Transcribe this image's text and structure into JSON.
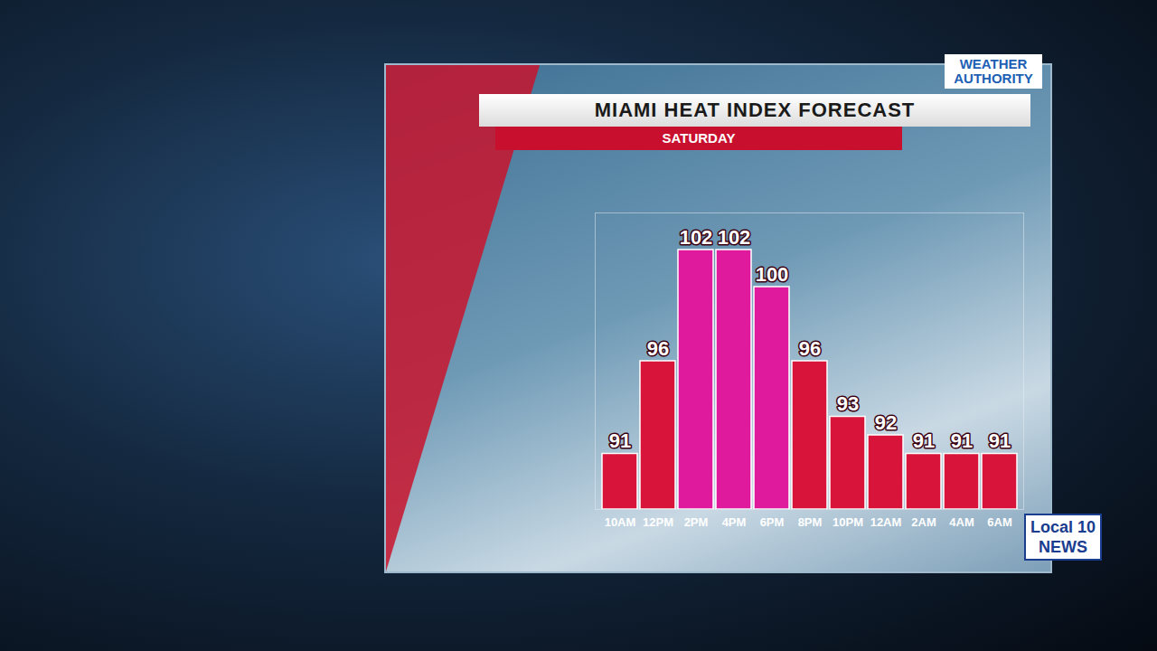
{
  "chart_data": {
    "type": "bar",
    "title": "MIAMI HEAT INDEX FORECAST",
    "subtitle": "SATURDAY",
    "categories": [
      "10AM",
      "12PM",
      "2PM",
      "4PM",
      "6PM",
      "8PM",
      "10PM",
      "12AM",
      "2AM",
      "4AM",
      "6AM"
    ],
    "values": [
      91,
      96,
      102,
      102,
      100,
      96,
      93,
      92,
      91,
      91,
      91
    ],
    "colors": [
      "#d9143a",
      "#d9143a",
      "#e01a9c",
      "#e01a9c",
      "#e01a9c",
      "#d9143a",
      "#d9143a",
      "#d9143a",
      "#d9143a",
      "#d9143a",
      "#d9143a"
    ],
    "ylim": [
      88,
      104
    ],
    "yticks": [],
    "grid": false,
    "data_labels": true,
    "tick_labels": "x",
    "annotations": [
      "WEATHER AUTHORITY",
      "Local 10 NEWS"
    ]
  }
}
